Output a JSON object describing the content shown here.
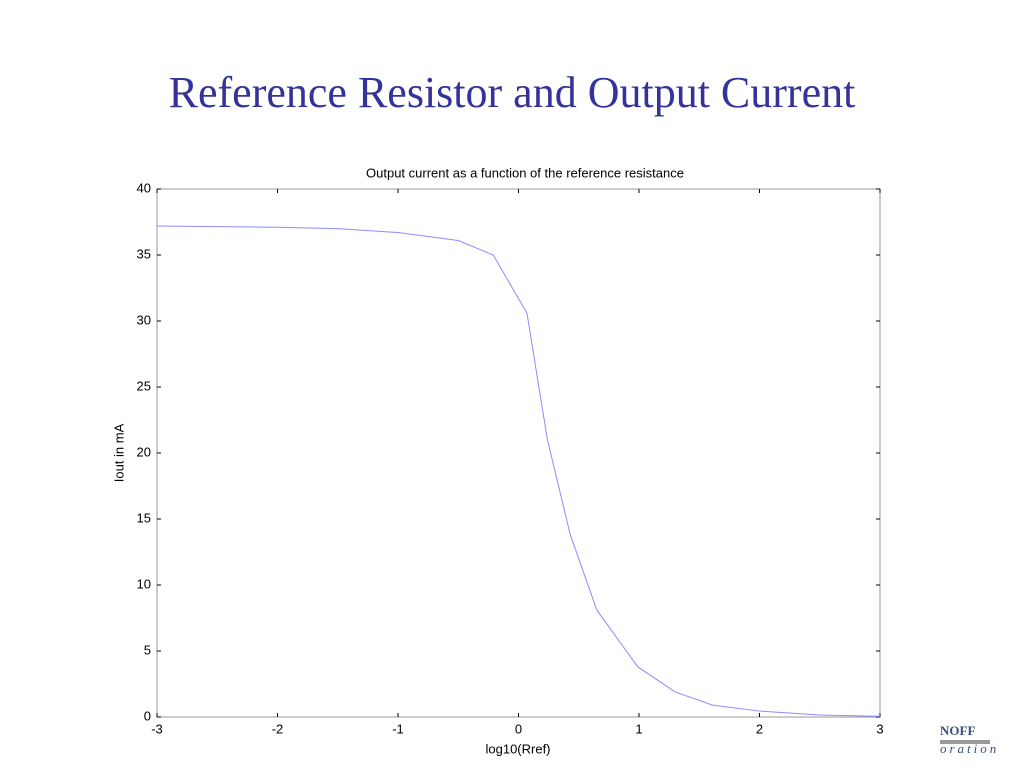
{
  "slide": {
    "title": "Reference Resistor and Output Current",
    "logo": [
      "NOFF",
      "oration"
    ]
  },
  "chart_data": {
    "type": "line",
    "title": "Output current as a function of the reference resistance",
    "x_label": "log10(Rref)",
    "y_label": "Iout in mA",
    "x": [
      -3,
      -2,
      -1.5,
      -1,
      -0.5,
      -0.21,
      0.07,
      0.24,
      0.43,
      0.65,
      0.99,
      1.3,
      1.61,
      2,
      2.5,
      3
    ],
    "values": [
      37.2,
      37.1,
      37.0,
      36.7,
      36.1,
      35.0,
      30.6,
      21.0,
      13.8,
      8.1,
      3.8,
      1.9,
      0.9,
      0.45,
      0.15,
      0.05
    ],
    "color": "#8c8cff",
    "xlim": [
      -3,
      3
    ],
    "ylim": [
      0,
      40
    ],
    "xticks": [
      -3,
      -2,
      -1,
      0,
      1,
      2,
      3
    ],
    "yticks": [
      0,
      5,
      10,
      15,
      20,
      25,
      30,
      35,
      40
    ]
  }
}
